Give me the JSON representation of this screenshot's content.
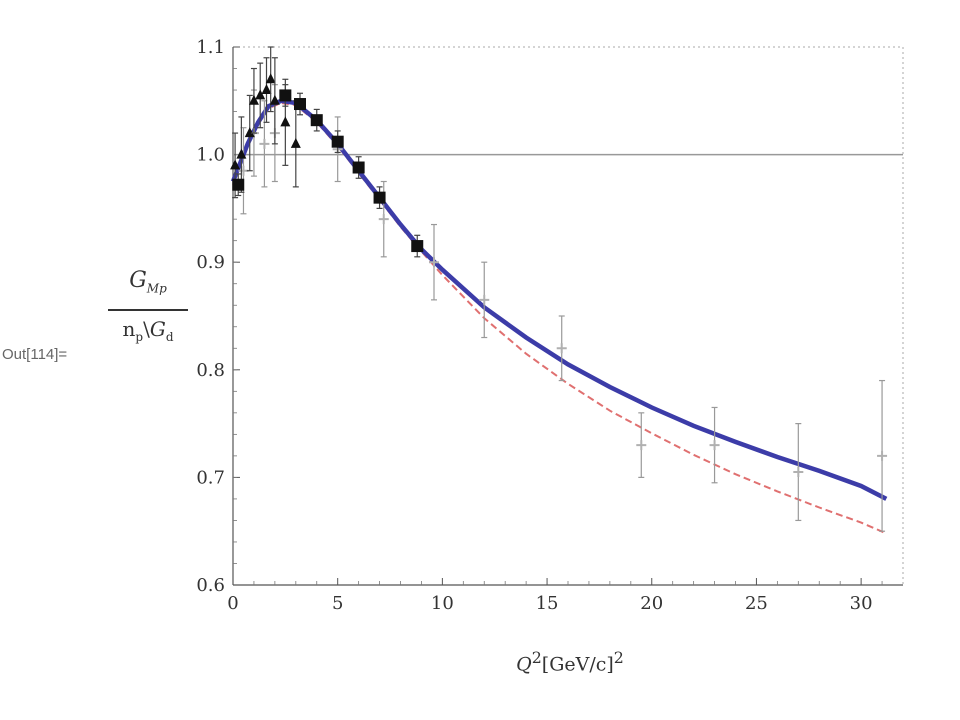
{
  "cell_label": "Out[114]=",
  "ylabel": {
    "num_main": "G",
    "num_sub": "Mp",
    "den_pre": "n",
    "den_pre_sub": "p",
    "den_mid": "\\",
    "den_main": "G",
    "den_main_sub": "d"
  },
  "xlabel": {
    "var": "Q",
    "sup": "2",
    "unit": "[GeV/c]",
    "unit_sup": "2"
  },
  "chart_data": {
    "type": "scatter",
    "title": "",
    "xlim": [
      0,
      32
    ],
    "ylim": [
      0.6,
      1.1
    ],
    "x_ticks": [
      0,
      5,
      10,
      15,
      20,
      25,
      30
    ],
    "y_ticks": [
      0.6,
      0.7,
      0.8,
      0.9,
      1.0,
      1.1
    ],
    "x_tick_labels": [
      "0",
      "5",
      "10",
      "15",
      "20",
      "25",
      "30"
    ],
    "y_tick_labels": [
      "0.6",
      "0.7",
      "0.8",
      "0.9",
      "1.0",
      "1.1"
    ],
    "reference_line": 1.0,
    "grid": false,
    "curves": [
      {
        "style": "solid",
        "color": "#3c3ca8",
        "x": [
          0,
          0.3,
          0.7,
          1.2,
          1.7,
          2.3,
          3.0,
          4.0,
          5.0,
          6.0,
          7.0,
          8.0,
          9.0,
          10,
          12,
          14,
          16,
          18,
          20,
          22,
          24,
          26,
          28,
          30,
          31.2
        ],
        "y": [
          0.975,
          0.99,
          1.01,
          1.03,
          1.045,
          1.05,
          1.048,
          1.032,
          1.01,
          0.985,
          0.96,
          0.935,
          0.912,
          0.893,
          0.858,
          0.83,
          0.805,
          0.784,
          0.765,
          0.748,
          0.733,
          0.719,
          0.706,
          0.692,
          0.68
        ]
      },
      {
        "style": "dashed",
        "color": "#e07070",
        "x": [
          0,
          0.3,
          0.7,
          1.2,
          1.7,
          2.3,
          3.0,
          4.0,
          5.0,
          6.0,
          7.0,
          8.0,
          9.0,
          10,
          12,
          14,
          16,
          18,
          20,
          22,
          24,
          26,
          28,
          30,
          31.2
        ],
        "y": [
          0.972,
          0.988,
          1.008,
          1.028,
          1.043,
          1.048,
          1.046,
          1.03,
          1.008,
          0.983,
          0.958,
          0.933,
          0.91,
          0.888,
          0.848,
          0.815,
          0.787,
          0.762,
          0.741,
          0.721,
          0.703,
          0.687,
          0.672,
          0.658,
          0.648
        ]
      }
    ],
    "series": [
      {
        "marker": "square",
        "color": "#111111",
        "points": [
          {
            "x": 0.25,
            "y": 0.972,
            "err": 0.01
          },
          {
            "x": 2.5,
            "y": 1.055,
            "err": 0.01
          },
          {
            "x": 3.2,
            "y": 1.047,
            "err": 0.01
          },
          {
            "x": 4.0,
            "y": 1.032,
            "err": 0.01
          },
          {
            "x": 5.0,
            "y": 1.012,
            "err": 0.01
          },
          {
            "x": 6.0,
            "y": 0.988,
            "err": 0.01
          },
          {
            "x": 7.0,
            "y": 0.96,
            "err": 0.01
          },
          {
            "x": 8.8,
            "y": 0.915,
            "err": 0.01
          }
        ]
      },
      {
        "marker": "triangle",
        "color": "#111111",
        "points": [
          {
            "x": 0.1,
            "y": 0.99,
            "err": 0.03
          },
          {
            "x": 0.4,
            "y": 1.0,
            "err": 0.035
          },
          {
            "x": 0.8,
            "y": 1.02,
            "err": 0.035
          },
          {
            "x": 1.0,
            "y": 1.05,
            "err": 0.03
          },
          {
            "x": 1.3,
            "y": 1.055,
            "err": 0.03
          },
          {
            "x": 1.6,
            "y": 1.06,
            "err": 0.03
          },
          {
            "x": 1.8,
            "y": 1.07,
            "err": 0.03
          },
          {
            "x": 2.0,
            "y": 1.05,
            "err": 0.04
          },
          {
            "x": 2.5,
            "y": 1.03,
            "err": 0.04
          },
          {
            "x": 3.0,
            "y": 1.01,
            "err": 0.04
          }
        ]
      },
      {
        "marker": "cross",
        "color": "#b0b0b0",
        "points": [
          {
            "x": 0.5,
            "y": 0.985,
            "err": 0.04
          },
          {
            "x": 1.0,
            "y": 1.02,
            "err": 0.04
          },
          {
            "x": 1.5,
            "y": 1.01,
            "err": 0.04
          },
          {
            "x": 2.0,
            "y": 1.02,
            "err": 0.045
          },
          {
            "x": 5.0,
            "y": 1.005,
            "err": 0.03
          },
          {
            "x": 7.2,
            "y": 0.94,
            "err": 0.035
          },
          {
            "x": 9.6,
            "y": 0.9,
            "err": 0.035
          },
          {
            "x": 12.0,
            "y": 0.865,
            "err": 0.035
          },
          {
            "x": 15.7,
            "y": 0.82,
            "err": 0.03
          },
          {
            "x": 19.5,
            "y": 0.73,
            "err": 0.03
          },
          {
            "x": 23.0,
            "y": 0.73,
            "err": 0.035
          },
          {
            "x": 27.0,
            "y": 0.705,
            "err": 0.045
          },
          {
            "x": 31.0,
            "y": 0.72,
            "err": 0.07
          }
        ]
      }
    ]
  }
}
